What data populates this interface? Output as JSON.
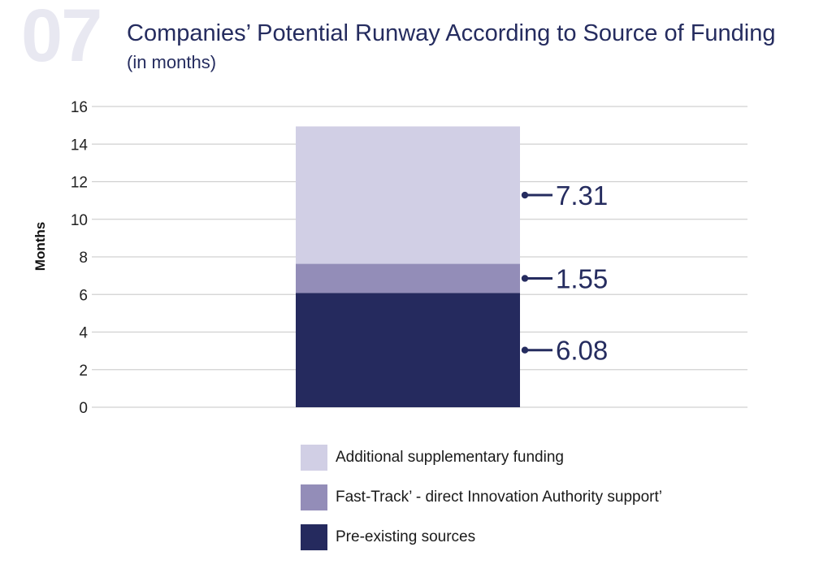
{
  "header": {
    "number": "07",
    "title_main": "Companies’ Potential Runway According to Source of Funding",
    "title_sub": "(in months)"
  },
  "colors": {
    "pre_existing": "#252a5e",
    "fast_track": "#938db8",
    "additional": "#d1cfe5",
    "grid": "#d0d0d0",
    "label": "#252c5f"
  },
  "chart_data": {
    "type": "bar",
    "stacked": true,
    "categories": [
      ""
    ],
    "ylabel": "Months",
    "ylim": [
      0,
      16
    ],
    "yticks": [
      0,
      2,
      4,
      6,
      8,
      10,
      12,
      14,
      16
    ],
    "grid": true,
    "legend_position": "bottom",
    "series": [
      {
        "name": "Pre-existing sources",
        "values": [
          6.08
        ],
        "color": "#252a5e",
        "label": "6.08"
      },
      {
        "name": "Fast-Track’ - direct Innovation Authority support’",
        "values": [
          1.55
        ],
        "color": "#938db8",
        "label": "1.55"
      },
      {
        "name": "Additional supplementary funding",
        "values": [
          7.31
        ],
        "color": "#d1cfe5",
        "label": "7.31"
      }
    ]
  },
  "legend": {
    "items": [
      {
        "label": "Additional supplementary funding",
        "color": "#d1cfe5"
      },
      {
        "label": "Fast-Track’ - direct Innovation Authority support’",
        "color": "#938db8"
      },
      {
        "label": "Pre-existing sources",
        "color": "#252a5e"
      }
    ]
  }
}
